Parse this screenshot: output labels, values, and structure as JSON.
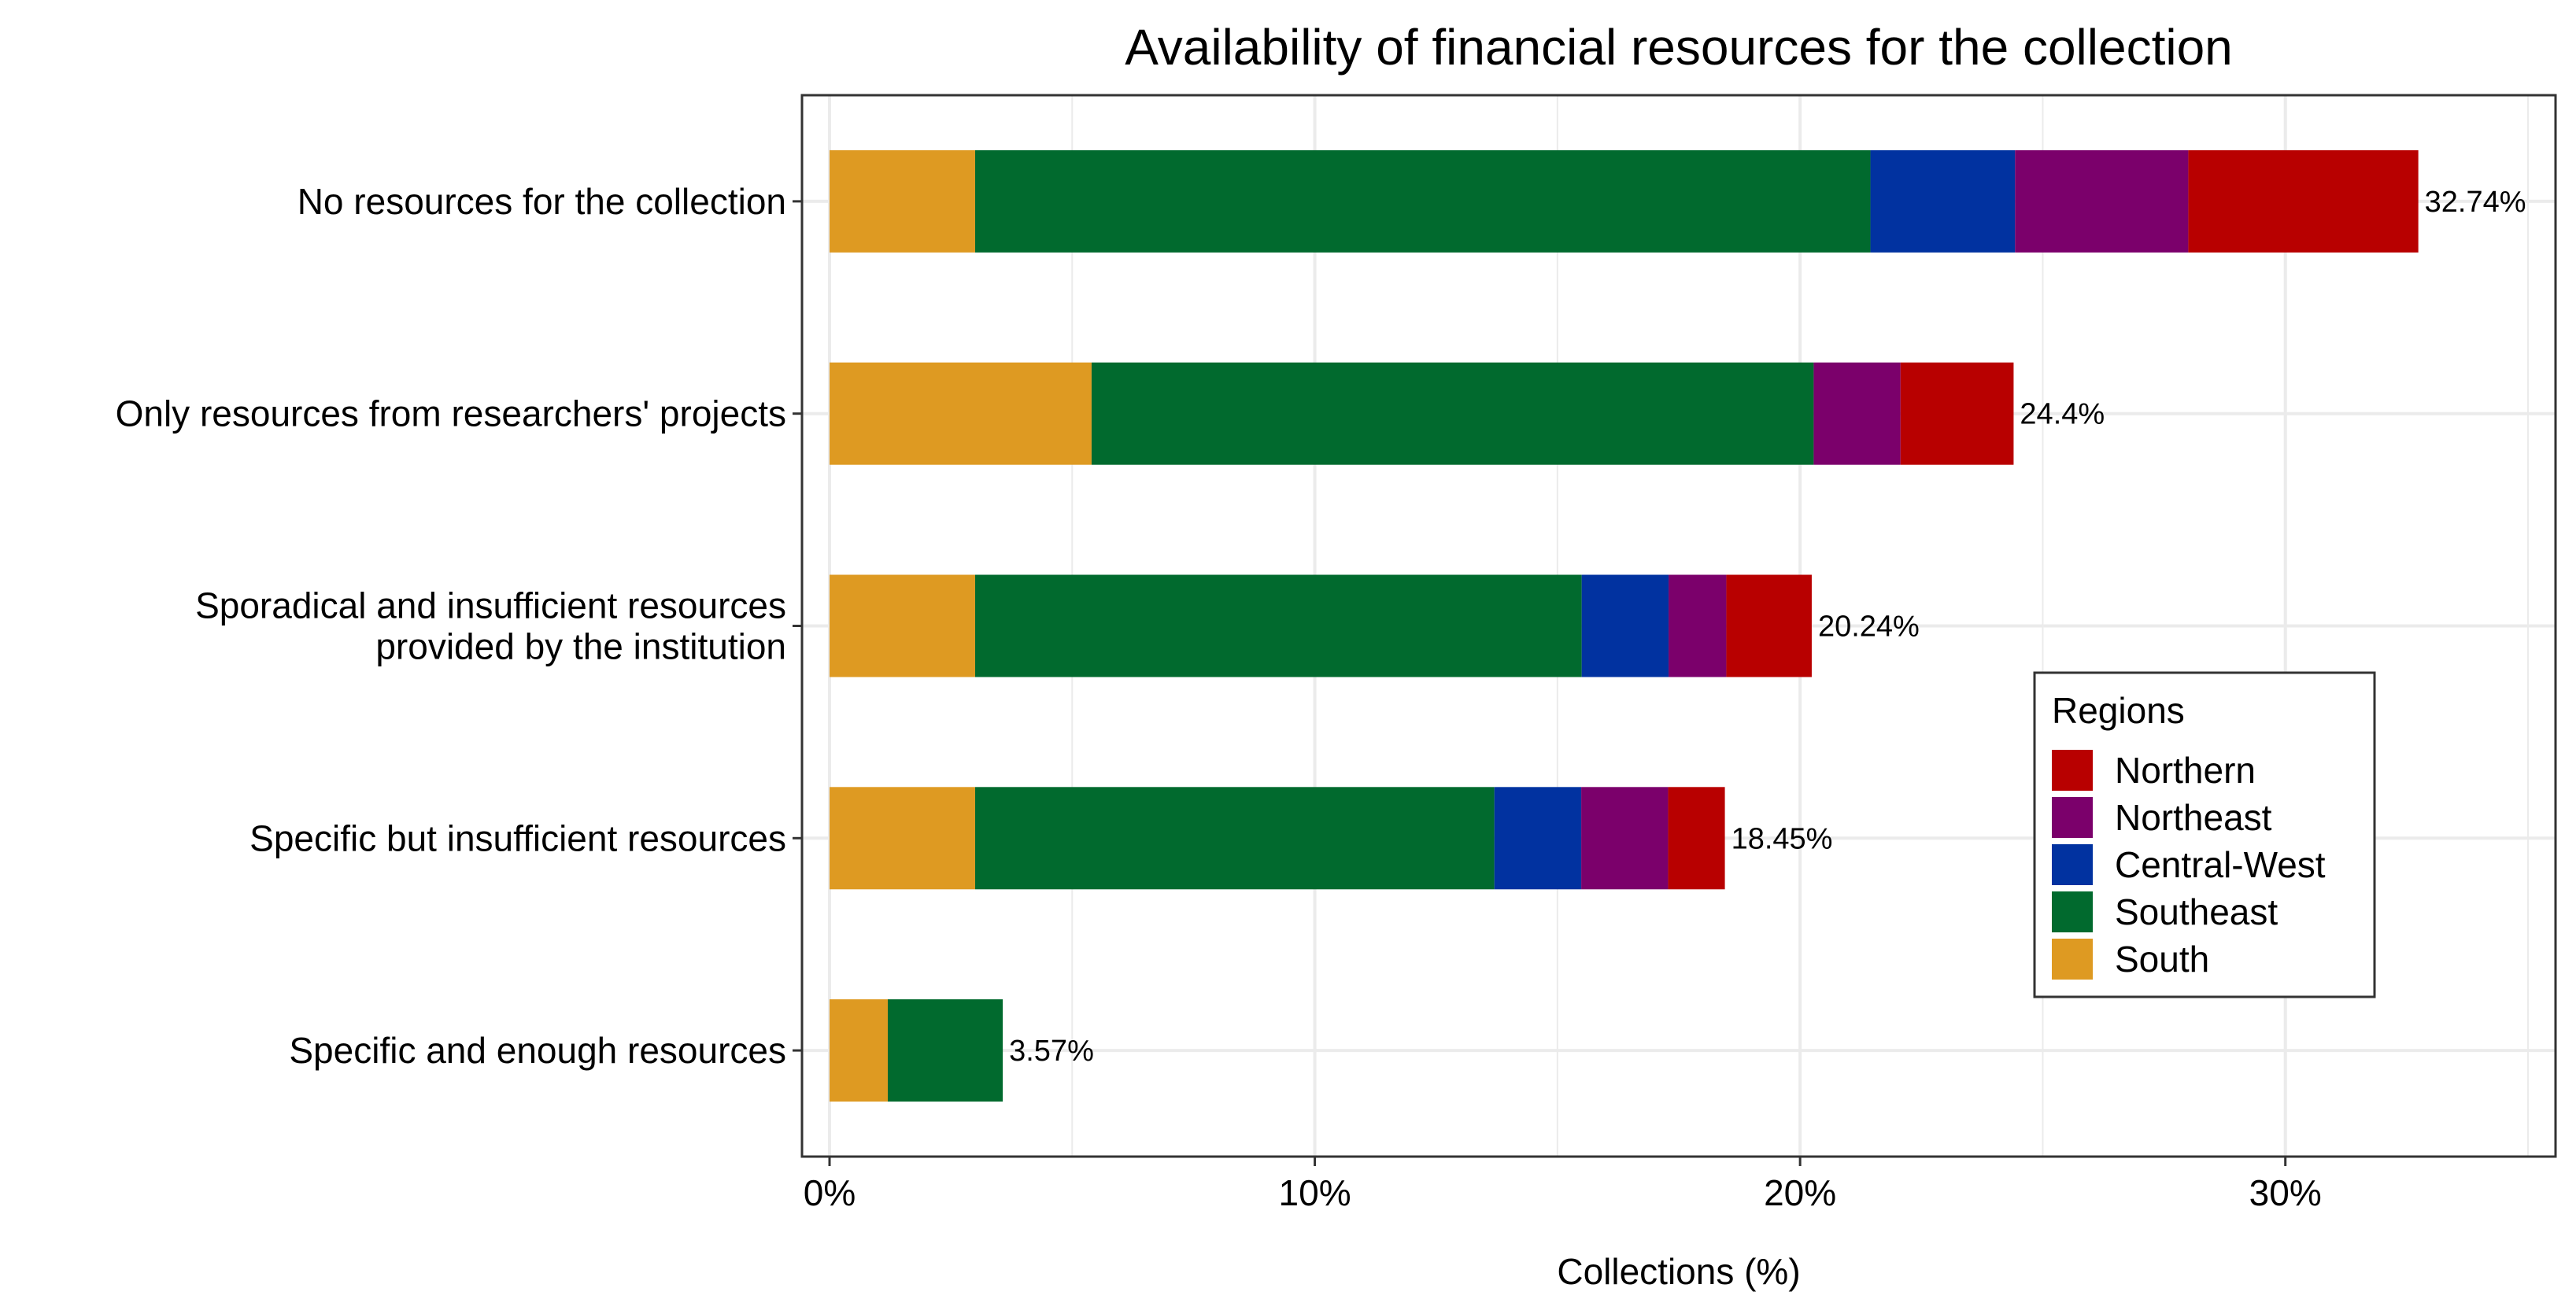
{
  "chart_data": {
    "type": "bar",
    "orientation": "horizontal",
    "stacked": true,
    "title": "Availability of financial resources for the collection",
    "xlabel": "Collections (%)",
    "ylabel": "",
    "xlim": [
      0,
      35
    ],
    "x_ticks": [
      0,
      10,
      20,
      30
    ],
    "x_tick_labels": [
      "0%",
      "10%",
      "20%",
      "30%"
    ],
    "grid": true,
    "categories": [
      [
        "No resources for the collection"
      ],
      [
        "Only resources from researchers' projects"
      ],
      [
        "Sporadical and insufficient resources",
        "provided by the institution"
      ],
      [
        "Specific but insufficient resources"
      ],
      [
        "Specific and enough resources"
      ]
    ],
    "series": [
      {
        "name": "South",
        "color": "#DE9A22",
        "values": [
          3.0,
          5.4,
          3.0,
          3.0,
          1.2
        ]
      },
      {
        "name": "Southeast",
        "color": "#016A2E",
        "values": [
          18.45,
          14.88,
          12.5,
          10.7,
          2.37
        ]
      },
      {
        "name": "Central-West",
        "color": "#0132A0",
        "values": [
          2.98,
          0,
          1.79,
          1.79,
          0
        ]
      },
      {
        "name": "Northeast",
        "color": "#7B006B",
        "values": [
          3.57,
          1.79,
          1.19,
          1.79,
          0
        ]
      },
      {
        "name": "Northern",
        "color": "#B80000",
        "values": [
          4.74,
          2.33,
          1.76,
          1.17,
          0
        ]
      }
    ],
    "totals": [
      32.74,
      24.4,
      20.24,
      18.45,
      3.57
    ],
    "total_labels": [
      "32.74%",
      "24.4%",
      "20.24%",
      "18.45%",
      "3.57%"
    ],
    "legend": {
      "title": "Regions",
      "position": "right",
      "entries": [
        "Northern",
        "Northeast",
        "Central-West",
        "Southeast",
        "South"
      ]
    }
  }
}
